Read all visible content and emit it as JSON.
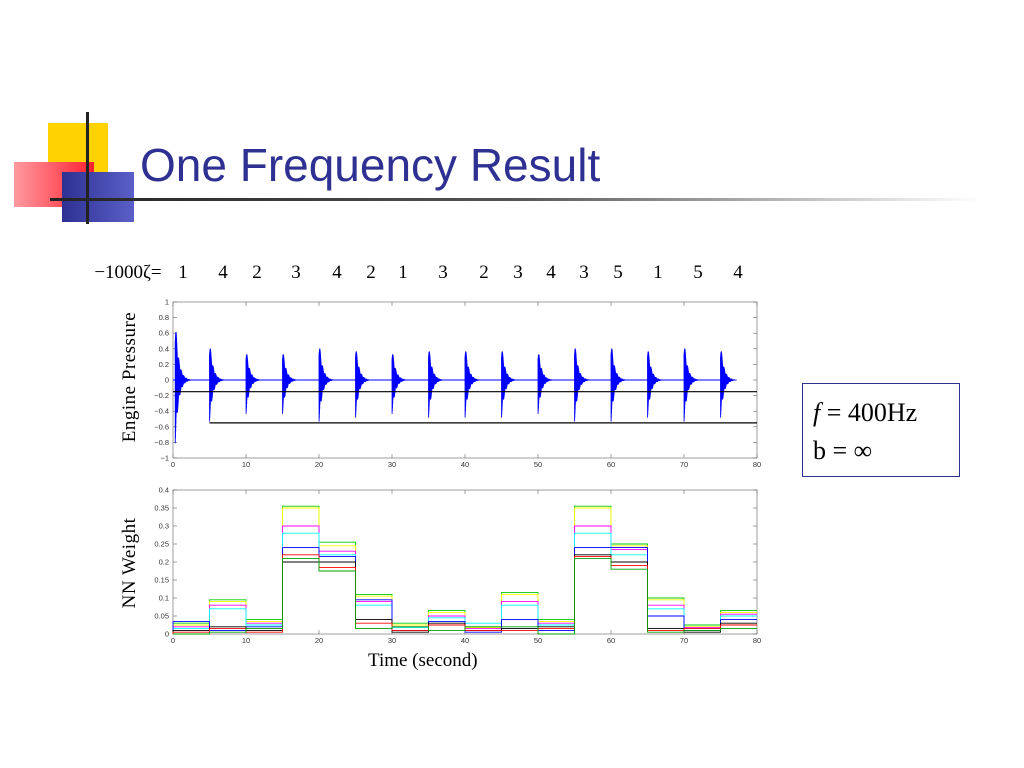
{
  "slide": {
    "title": "One Frequency Result"
  },
  "zeta_row": {
    "label": "−1000ζ=",
    "values": [
      "1",
      "4",
      "2",
      "3",
      "4",
      "2",
      "1",
      "3",
      "2",
      "3",
      "4",
      "3",
      "5",
      "1",
      "5",
      "4"
    ]
  },
  "params": {
    "f_symbol": "f",
    "f_value": " = 400Hz",
    "b_line": "b = ∞"
  },
  "colors": {
    "title": "#2e3192",
    "signal": "#0000ff",
    "box_border": "#2e3192"
  },
  "chart_data": [
    {
      "type": "line",
      "title": "",
      "xlabel": "",
      "ylabel": "Engine Pressure",
      "xlim": [
        0,
        80
      ],
      "ylim": [
        -1,
        1
      ],
      "x_ticks": [
        0,
        10,
        20,
        30,
        40,
        50,
        60,
        70,
        80
      ],
      "y_ticks": [
        -1,
        -0.8,
        -0.6,
        -0.4,
        -0.2,
        0,
        0.2,
        0.4,
        0.6,
        0.8,
        1
      ],
      "y_tick_labels": [
        "−1",
        "−0.8",
        "−0.6",
        "−0.4",
        "−0.2",
        "0",
        "0.2",
        "0.4",
        "0.6",
        "0.8",
        "1"
      ],
      "burst_times": [
        0.3,
        5,
        10,
        15,
        20,
        25,
        30,
        35,
        40,
        45,
        50,
        55,
        60,
        65,
        70,
        75
      ],
      "burst_amplitudes": [
        0.8,
        0.55,
        0.45,
        0.45,
        0.55,
        0.5,
        0.45,
        0.5,
        0.5,
        0.5,
        0.45,
        0.55,
        0.55,
        0.5,
        0.55,
        0.5
      ],
      "hlines": [
        {
          "y": -0.15,
          "x_range": [
            0,
            80
          ]
        },
        {
          "y": -0.55,
          "x_range": [
            5,
            80
          ]
        }
      ],
      "grid": false
    },
    {
      "type": "line",
      "title": "",
      "xlabel": "Time (second)",
      "ylabel": "NN Weight",
      "xlim": [
        0,
        80
      ],
      "ylim": [
        0,
        0.4
      ],
      "x_ticks": [
        0,
        10,
        20,
        30,
        40,
        50,
        60,
        70,
        80
      ],
      "y_ticks": [
        0,
        0.05,
        0.1,
        0.15,
        0.2,
        0.25,
        0.3,
        0.35,
        0.4
      ],
      "y_tick_labels": [
        "0",
        "0.05",
        "0.1",
        "0.15",
        "0.2",
        "0.25",
        "0.3",
        "0.35",
        "0.4"
      ],
      "segments_x": [
        0,
        5,
        10,
        15,
        20,
        25,
        30,
        35,
        40,
        45,
        50,
        55,
        60,
        65,
        70,
        75,
        80
      ],
      "series": [
        {
          "color": "#00cc00",
          "values": [
            0.03,
            0.095,
            0.04,
            0.355,
            0.255,
            0.11,
            0.03,
            0.065,
            0.02,
            0.115,
            0.04,
            0.355,
            0.25,
            0.1,
            0.025,
            0.065
          ]
        },
        {
          "color": "#ffff00",
          "values": [
            0.025,
            0.09,
            0.035,
            0.35,
            0.245,
            0.105,
            0.025,
            0.06,
            0.018,
            0.11,
            0.035,
            0.35,
            0.245,
            0.095,
            0.02,
            0.06
          ]
        },
        {
          "color": "#ff00ff",
          "values": [
            0.02,
            0.08,
            0.03,
            0.3,
            0.23,
            0.09,
            0.02,
            0.05,
            0.015,
            0.09,
            0.03,
            0.3,
            0.235,
            0.08,
            0.018,
            0.055
          ]
        },
        {
          "color": "#00ffff",
          "values": [
            0.015,
            0.07,
            0.025,
            0.28,
            0.22,
            0.08,
            0.018,
            0.045,
            0.03,
            0.08,
            0.025,
            0.28,
            0.22,
            0.07,
            0.015,
            0.05
          ]
        },
        {
          "color": "#0000ff",
          "values": [
            0.035,
            0.01,
            0.02,
            0.24,
            0.215,
            0.095,
            0.01,
            0.035,
            0.005,
            0.04,
            0.01,
            0.24,
            0.24,
            0.05,
            0.01,
            0.04
          ]
        },
        {
          "color": "#000000",
          "values": [
            0.01,
            0.02,
            0.01,
            0.2,
            0.2,
            0.04,
            0.005,
            0.03,
            0.01,
            0.015,
            0.02,
            0.22,
            0.2,
            0.015,
            0.005,
            0.03
          ]
        },
        {
          "color": "#ff0000",
          "values": [
            0.005,
            0.015,
            0.005,
            0.22,
            0.185,
            0.03,
            0.01,
            0.025,
            0.01,
            0.01,
            0.015,
            0.215,
            0.19,
            0.01,
            0.015,
            0.025
          ]
        },
        {
          "color": "#00a000",
          "values": [
            0.0,
            0.005,
            0.015,
            0.21,
            0.175,
            0.015,
            0.02,
            0.01,
            0.02,
            0.02,
            0.0,
            0.21,
            0.18,
            0.005,
            0.01,
            0.015
          ]
        }
      ],
      "grid": false
    }
  ]
}
